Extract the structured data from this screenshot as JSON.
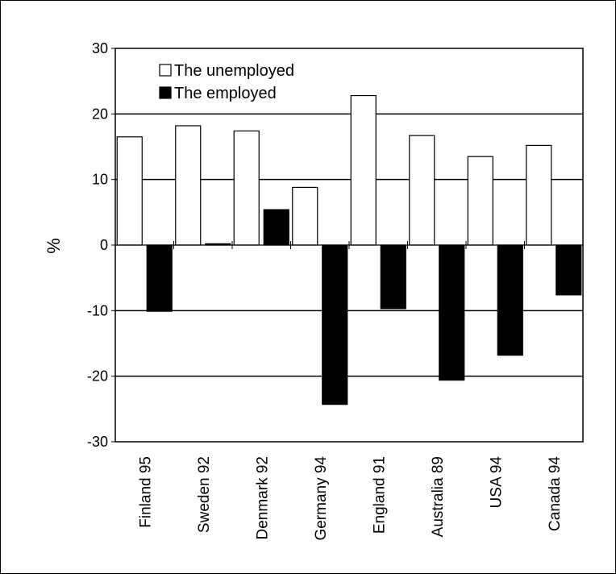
{
  "chart_data": {
    "type": "bar",
    "title": "",
    "xlabel": "",
    "ylabel": "%",
    "ylim": [
      -30,
      30
    ],
    "yticks": [
      30,
      20,
      10,
      0,
      -10,
      -20,
      -30
    ],
    "ytick_labels": [
      "30",
      "20",
      "10",
      "0",
      "-10",
      "-20",
      "-30"
    ],
    "gridlines": [
      20,
      10,
      -10,
      -20
    ],
    "grid": "horizontal",
    "legend": "top-left",
    "categories": [
      "Finland 95",
      "Sweden 92",
      "Denmark 92",
      "Germany 94",
      "England 91",
      "Australia 89",
      "USA 94",
      "Canada 94"
    ],
    "series": [
      {
        "name": "The unemployed",
        "color": "#ffffff",
        "values": [
          16.5,
          18.2,
          17.4,
          8.8,
          22.8,
          16.7,
          13.5,
          15.2
        ]
      },
      {
        "name": "The employed",
        "color": "#000000",
        "values": [
          -10.1,
          0.2,
          5.4,
          -24.3,
          -9.7,
          -20.6,
          -16.8,
          -7.6
        ]
      }
    ]
  }
}
